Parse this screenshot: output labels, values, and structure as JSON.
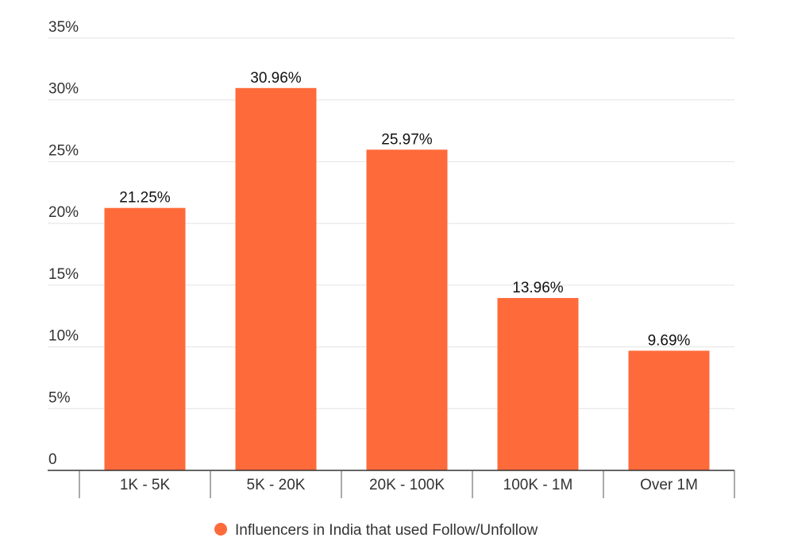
{
  "chart_data": {
    "type": "bar",
    "categories": [
      "1K - 5K",
      "5K - 20K",
      "20K - 100K",
      "100K - 1M",
      "Over 1M"
    ],
    "series": [
      {
        "name": "Influencers in India that used Follow/Unfollow",
        "values": [
          21.25,
          30.96,
          25.97,
          13.96,
          9.69
        ],
        "color": "#ff6a3a"
      }
    ],
    "data_labels": [
      "21.25%",
      "30.96%",
      "25.97%",
      "13.96%",
      "9.69%"
    ],
    "y_ticks": [
      0,
      5,
      10,
      15,
      20,
      25,
      30,
      35
    ],
    "y_tick_labels": [
      "0",
      "5%",
      "10%",
      "15%",
      "20%",
      "25%",
      "30%",
      "35%"
    ],
    "ylim": [
      0,
      35
    ],
    "title": "",
    "xlabel": "",
    "ylabel": "",
    "grid": true,
    "legend_position": "bottom"
  }
}
